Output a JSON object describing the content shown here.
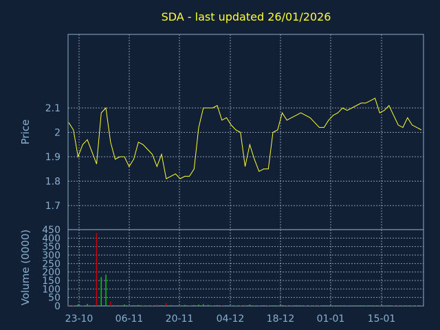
{
  "chart_data": [
    {
      "type": "line",
      "title": "SDA - last updated 26/01/2026",
      "ylabel": "Price",
      "ylim": [
        1.6,
        2.4
      ],
      "yticks": [
        "1.7",
        "1.8",
        "1.9",
        "2",
        "2.1"
      ],
      "xticks": [
        "23-10",
        "06-11",
        "20-11",
        "04-12",
        "18-12",
        "01-01",
        "15-01"
      ],
      "grid": true,
      "line_color": "#ffff33",
      "series": [
        {
          "values": [
            2.04,
            2.01,
            1.9,
            1.95,
            1.97,
            1.92,
            1.87,
            2.08,
            2.1,
            1.96,
            1.89,
            1.9,
            1.9,
            1.86,
            1.89,
            1.96,
            1.95,
            1.93,
            1.91,
            1.86,
            1.91,
            1.81,
            1.82,
            1.83,
            1.81,
            1.82,
            1.82,
            1.85,
            2.02,
            2.1,
            2.1,
            2.1,
            2.11,
            2.05,
            2.06,
            2.03,
            2.01,
            2.0,
            1.86,
            1.95,
            1.89,
            1.84,
            1.85,
            1.85,
            2.0,
            2.01,
            2.08,
            2.05,
            2.06,
            2.07,
            2.08,
            2.07,
            2.06,
            2.04,
            2.02,
            2.02,
            2.05,
            2.07,
            2.08,
            2.1,
            2.09,
            2.1,
            2.11,
            2.12,
            2.12,
            2.13,
            2.14,
            2.08,
            2.09,
            2.11,
            2.07,
            2.03,
            2.02,
            2.06,
            2.03,
            2.02,
            2.01
          ]
        }
      ]
    },
    {
      "type": "bar",
      "ylabel": "Volume (0000)",
      "ylim": [
        0,
        450
      ],
      "yticks": [
        "0",
        "50",
        "100",
        "150",
        "200",
        "250",
        "300",
        "350",
        "400",
        "450"
      ],
      "grid": true,
      "colors": {
        "up": "#00cc00",
        "down": "#cc0000"
      },
      "volumes": [
        5,
        3,
        8,
        2,
        12,
        4,
        430,
        170,
        185,
        25,
        6,
        3,
        8,
        5,
        4,
        6,
        3,
        5,
        2,
        8,
        4,
        18,
        5,
        3,
        4,
        6,
        3,
        5,
        8,
        10,
        6,
        4,
        5,
        3,
        4,
        5,
        3,
        2,
        6,
        8,
        5,
        3,
        4,
        2,
        3,
        2,
        5,
        3,
        2,
        4,
        3,
        2,
        2,
        3,
        2,
        4,
        3,
        2,
        3,
        2,
        4,
        3,
        2,
        3,
        2,
        3,
        2,
        4,
        2,
        3,
        2,
        3,
        4,
        2,
        3,
        2,
        3
      ],
      "directions": [
        "down",
        "down",
        "up",
        "down",
        "up",
        "down",
        "down",
        "up",
        "up",
        "down",
        "down",
        "up",
        "up",
        "down",
        "up",
        "up",
        "down",
        "down",
        "down",
        "down",
        "up",
        "down",
        "up",
        "up",
        "down",
        "up",
        "down",
        "up",
        "up",
        "up",
        "up",
        "down",
        "up",
        "down",
        "up",
        "down",
        "down",
        "down",
        "down",
        "up",
        "down",
        "down",
        "up",
        "down",
        "up",
        "up",
        "up",
        "down",
        "up",
        "up",
        "up",
        "down",
        "down",
        "down",
        "down",
        "up",
        "up",
        "up",
        "up",
        "up",
        "down",
        "up",
        "up",
        "up",
        "up",
        "up",
        "up",
        "down",
        "up",
        "up",
        "down",
        "down",
        "down",
        "up",
        "down",
        "down",
        "down"
      ]
    }
  ]
}
